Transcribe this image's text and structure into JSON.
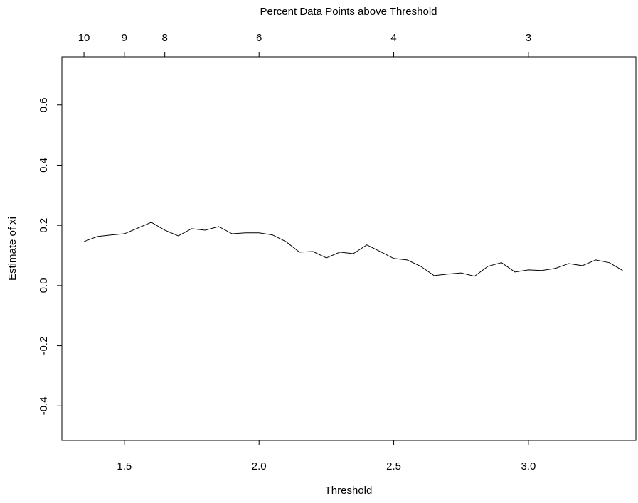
{
  "chart_data": {
    "type": "line",
    "x2label": "Percent Data Points above Threshold",
    "xlabel": "Threshold",
    "ylabel": "Estimate of xi",
    "x": [
      1.35,
      1.4,
      1.45,
      1.5,
      1.55,
      1.6,
      1.65,
      1.7,
      1.75,
      1.8,
      1.85,
      1.9,
      1.95,
      2.0,
      2.05,
      2.1,
      2.15,
      2.2,
      2.25,
      2.3,
      2.35,
      2.4,
      2.45,
      2.5,
      2.55,
      2.6,
      2.65,
      2.7,
      2.75,
      2.8,
      2.85,
      2.9,
      2.95,
      3.0,
      3.05,
      3.1,
      3.15,
      3.2,
      3.25,
      3.3,
      3.35
    ],
    "series": [
      {
        "color": "#000000",
        "values": [
          0.146,
          0.163,
          0.168,
          0.172,
          0.191,
          0.21,
          0.184,
          0.165,
          0.189,
          0.184,
          0.196,
          0.172,
          0.175,
          0.175,
          0.168,
          0.146,
          0.111,
          0.113,
          0.092,
          0.111,
          0.106,
          0.135,
          0.113,
          0.09,
          0.085,
          0.064,
          0.033,
          0.038,
          0.042,
          0.031,
          0.064,
          0.076,
          0.045,
          0.052,
          0.05,
          0.057,
          0.073,
          0.066,
          0.085,
          0.076,
          0.05
        ]
      }
    ],
    "xlim": [
      1.268,
      3.399
    ],
    "ylim": [
      -0.515,
      0.76
    ],
    "xticks": [
      1.5,
      {
        "value": 2,
        "label": "2.0"
      },
      2.5,
      {
        "value": 3,
        "label": "3.0"
      }
    ],
    "x2ticks": [
      {
        "value": 1.35,
        "label": "10"
      },
      {
        "value": 1.5,
        "label": "9"
      },
      {
        "value": 1.65,
        "label": "8"
      },
      {
        "value": 2,
        "label": "6"
      },
      {
        "value": 2.5,
        "label": "4"
      },
      {
        "value": 3,
        "label": "3"
      }
    ],
    "yticks": [
      -0.4,
      -0.2,
      {
        "value": 0,
        "label": "0.0"
      },
      0.2,
      0.4,
      0.6
    ],
    "grid": false
  }
}
